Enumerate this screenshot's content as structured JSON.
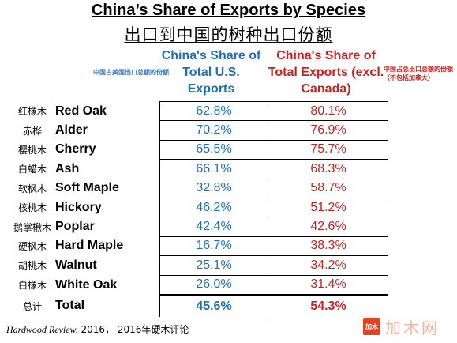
{
  "title": "China’s Share of Exports by Species",
  "subtitle": "出口到中国的树种出口份额",
  "note_left": "中国占美国出口总额的份额",
  "header_us": "China's Share of Total U.S. Exports",
  "header_total": "China's Share of Total Exports (excl. Canada)",
  "note_right_line1": "中国占总出口总额的份额",
  "note_right_line2": "（不包括加拿大）",
  "rows": [
    {
      "cn": "红橡木",
      "en": "Red Oak",
      "us": "62.8%",
      "total": "80.1%"
    },
    {
      "cn": "赤桦",
      "en": "Alder",
      "us": "70.2%",
      "total": "76.9%"
    },
    {
      "cn": "樱桃木",
      "en": "Cherry",
      "us": "65.5%",
      "total": "75.7%"
    },
    {
      "cn": "白蜡木",
      "en": "Ash",
      "us": "66.1%",
      "total": "68.3%"
    },
    {
      "cn": "软枫木",
      "en": "Soft Maple",
      "us": "32.8%",
      "total": "58.7%"
    },
    {
      "cn": "核桃木",
      "en": "Hickory",
      "us": "46.2%",
      "total": "51.2%"
    },
    {
      "cn": "鹅掌楸木",
      "en": "Poplar",
      "us": "42.4%",
      "total": "42.6%"
    },
    {
      "cn": "硬枫木",
      "en": "Hard Maple",
      "us": "16.7%",
      "total": "38.3%"
    },
    {
      "cn": "胡桃木",
      "en": "Walnut",
      "us": "25.1%",
      "total": "34.2%"
    },
    {
      "cn": "白橡木",
      "en": "White Oak",
      "us": "26.0%",
      "total": "31.4%"
    }
  ],
  "total_row": {
    "cn": "总计",
    "en": "Total",
    "us": "45.6%",
    "total": "54.3%"
  },
  "source_italic": "Hardwood Review,",
  "source_rest": " 2016， 2016年硬木评论",
  "watermark_logo": "加木",
  "watermark_text": "加木网",
  "colors": {
    "us": "#1f6fb5",
    "total": "#cc1f1f"
  }
}
